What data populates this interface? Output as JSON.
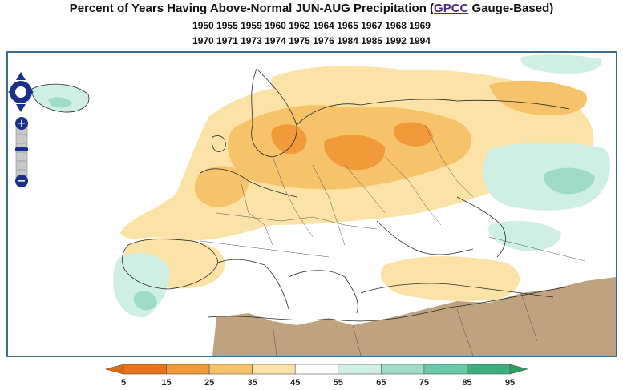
{
  "header": {
    "title_prefix": "Percent of Years Having Above-Normal JUN-AUG Precipitation (",
    "link_label": "GPCC",
    "title_suffix": " Gauge-Based)",
    "years_line1": "1950 1955 1959 1960 1962 1964 1965 1967 1968 1969",
    "years_line2": "1970 1971 1973 1974 1975 1976 1984 1985 1992 1994"
  },
  "map_controls": {
    "pan": "pan-control",
    "zoom_in": "+",
    "zoom_out": "−"
  },
  "legend": {
    "ticks": [
      "5",
      "15",
      "25",
      "35",
      "45",
      "55",
      "65",
      "75",
      "85",
      "95"
    ],
    "colors": [
      "#e8731a",
      "#f09a3a",
      "#f6c26a",
      "#fbe3a7",
      "#ffffff",
      "#cfeee4",
      "#9fdcc7",
      "#6cc7a8",
      "#3fae7e"
    ],
    "low_arrow_color": "#e06a10",
    "high_arrow_color": "#2e9e5c",
    "no_data_color": "#bfa27f"
  }
}
